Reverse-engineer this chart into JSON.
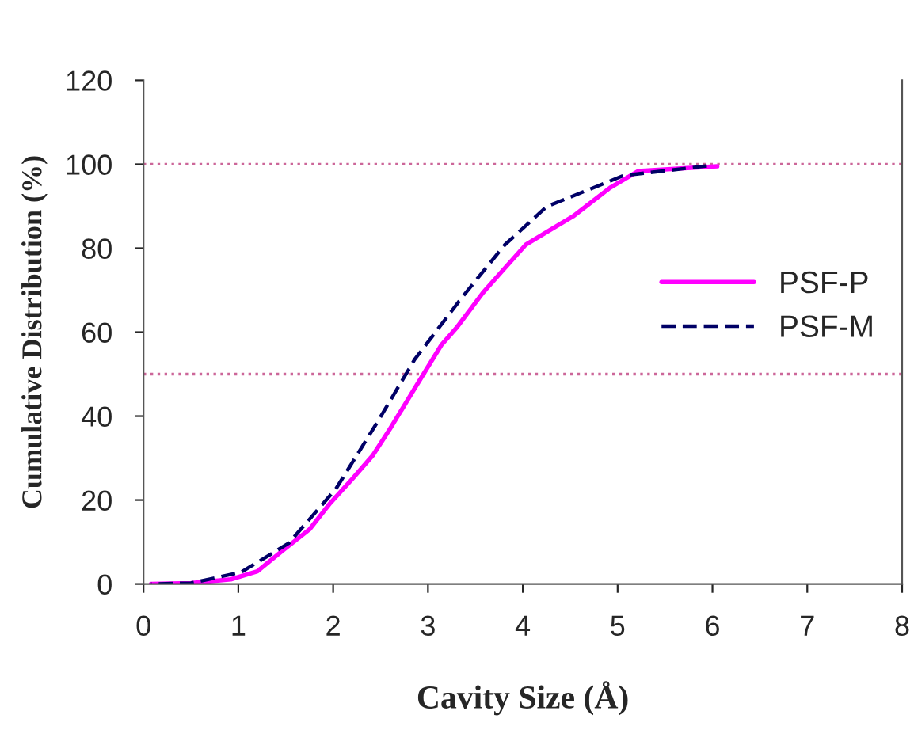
{
  "chart_data": {
    "type": "line",
    "xlabel": "Cavity Size (Å)",
    "ylabel": "Cumulative Distribution (%)",
    "xlim": [
      0,
      8
    ],
    "ylim": [
      0,
      120
    ],
    "xticks": [
      0,
      1,
      2,
      3,
      4,
      5,
      6,
      7,
      8
    ],
    "yticks": [
      0,
      20,
      40,
      60,
      80,
      100,
      120
    ],
    "grid": false,
    "legend": "right",
    "marker": "none",
    "series": [
      {
        "name": "PSF-P",
        "color": "#ff00ff",
        "line_style": "solid",
        "x": [
          0.08,
          0.5,
          0.92,
          1.2,
          1.47,
          1.75,
          1.97,
          2.2,
          2.42,
          2.6,
          2.86,
          3.14,
          3.3,
          3.58,
          3.8,
          4.03,
          4.3,
          4.53,
          4.92,
          5.22,
          6.05
        ],
        "values": [
          0,
          0.2,
          1.1,
          3,
          8,
          13,
          19.3,
          25,
          30.7,
          37,
          46.6,
          56.9,
          61,
          69.4,
          75,
          80.8,
          84.5,
          87.6,
          94.4,
          98.4,
          99.5
        ]
      },
      {
        "name": "PSF-M",
        "color": "#000066",
        "line_style": "dashed",
        "x": [
          0.08,
          0.5,
          1.03,
          1.53,
          2.03,
          2.47,
          2.86,
          3.36,
          3.81,
          4.25,
          4.81,
          5.06,
          5.94
        ],
        "values": [
          0,
          0.2,
          2.8,
          9.7,
          22.7,
          38.7,
          53.5,
          68.3,
          80.8,
          89.9,
          95,
          97.3,
          99.6
        ]
      }
    ],
    "ref_lines": [
      {
        "axis": "y",
        "value": 100,
        "color": "#cc6699",
        "line_style": "dotted"
      },
      {
        "axis": "y",
        "value": 50,
        "color": "#cc6699",
        "line_style": "dotted"
      }
    ]
  }
}
